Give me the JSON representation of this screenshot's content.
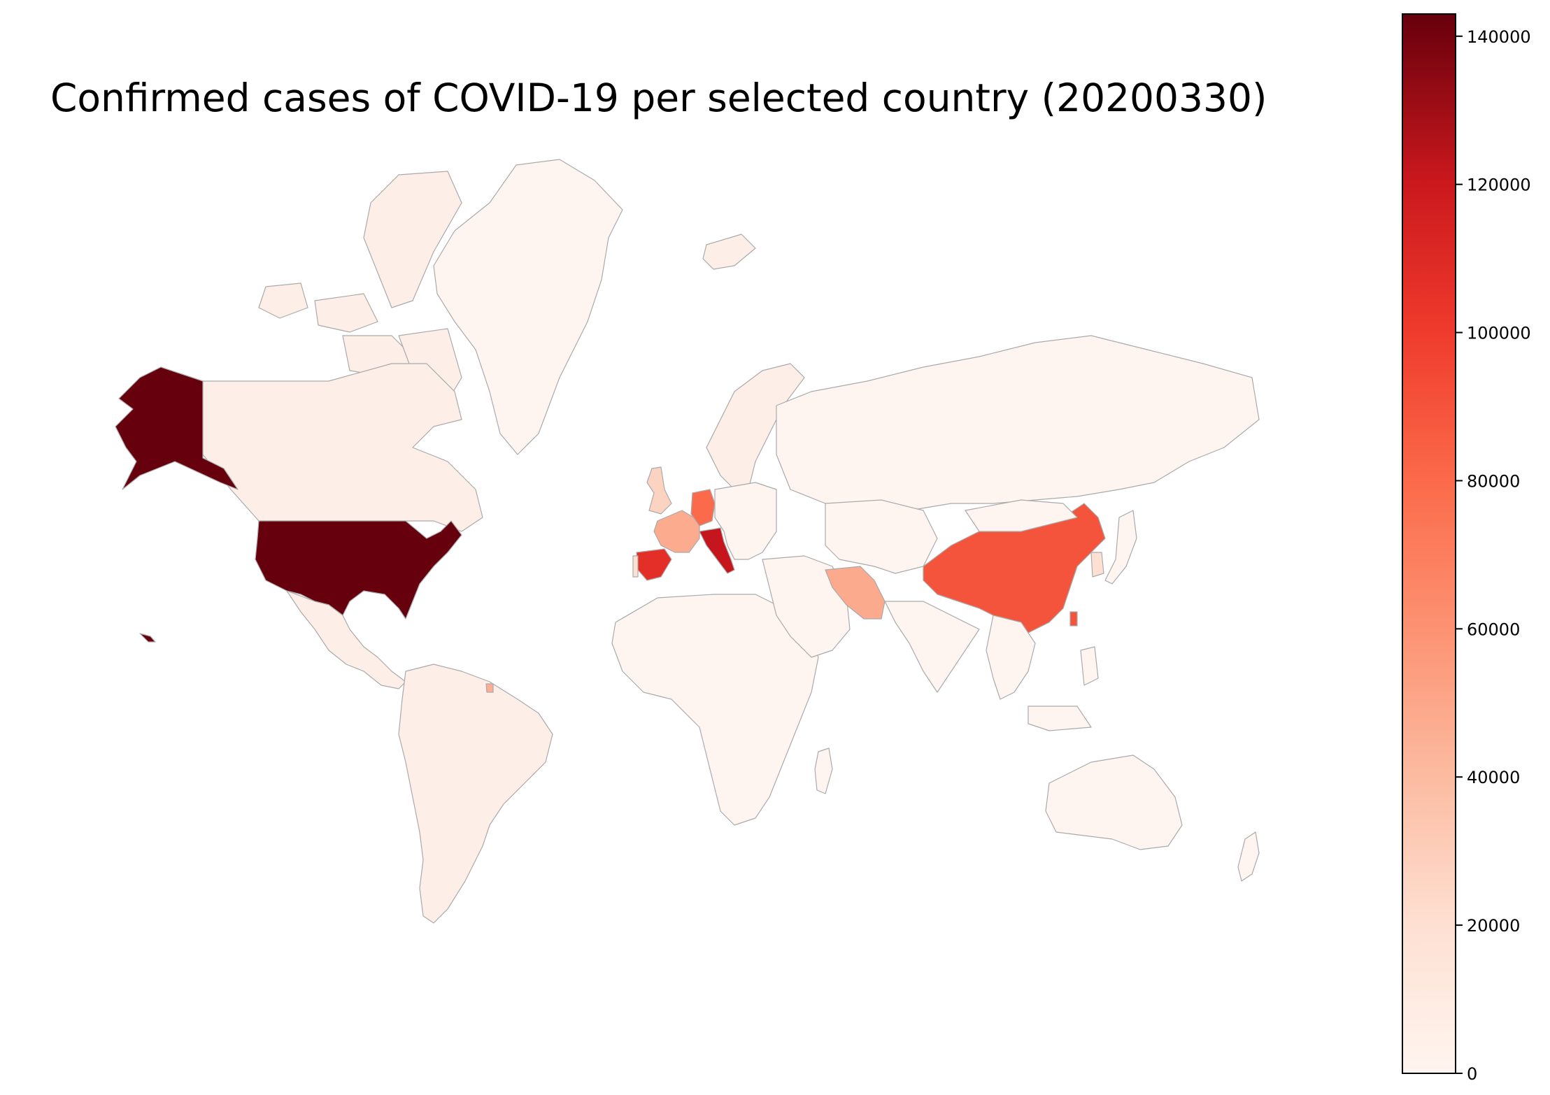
{
  "title": "Confirmed cases of COVID-19 per selected country (20200330)",
  "chart_data": {
    "type": "choropleth",
    "title": "Confirmed cases of COVID-19 per selected country (20200330)",
    "colormap": "Reds",
    "color_range": [
      0,
      143000
    ],
    "colorbar_ticks": [
      0,
      20000,
      40000,
      60000,
      80000,
      100000,
      120000,
      140000
    ],
    "colorbar_tick_labels": [
      "0",
      "20000",
      "40000",
      "60000",
      "80000",
      "100000",
      "120000",
      "140000"
    ],
    "colors": {
      "low": "#fff5f0",
      "high": "#67000d",
      "border": "#aaaaaa"
    }
  }
}
